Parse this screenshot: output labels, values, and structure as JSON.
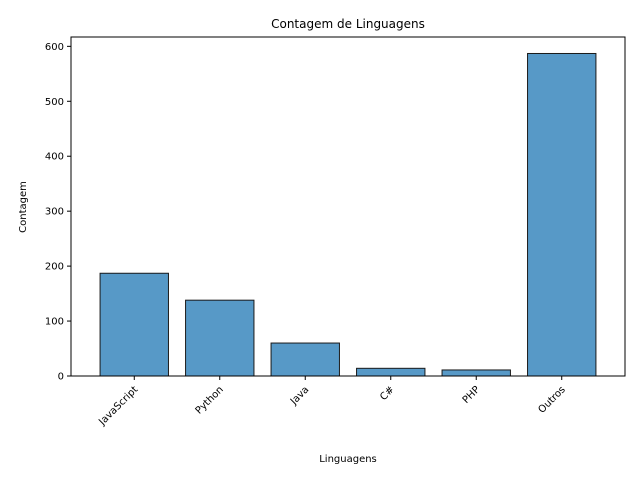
{
  "chart_data": {
    "type": "bar",
    "title": "Contagem de Linguagens",
    "xlabel": "Linguagens",
    "ylabel": "Contagem",
    "categories": [
      "JavaScript",
      "Python",
      "Java",
      "C#",
      "PHP",
      "Outros"
    ],
    "values": [
      187,
      138,
      60,
      14,
      11,
      587
    ],
    "ylim": [
      0,
      617
    ],
    "yticks": [
      0,
      100,
      200,
      300,
      400,
      500,
      600
    ],
    "bar_color": "#5799c7",
    "edge_color": "#1a1a1a",
    "grid": false,
    "legend": "none"
  }
}
